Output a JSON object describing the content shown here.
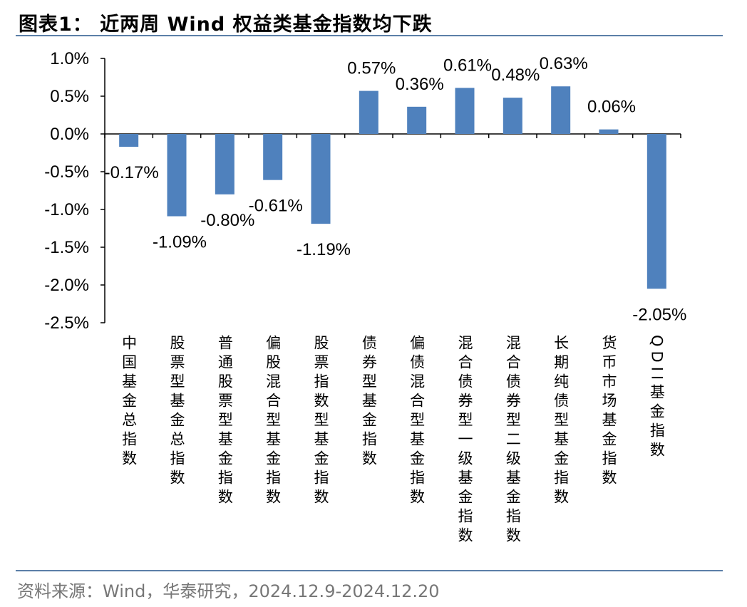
{
  "title": "图表1：  近两周 Wind 权益类基金指数均下跌",
  "source": "资料来源：Wind，华泰研究，2024.12.9-2024.12.20",
  "colors": {
    "bar": "#4f81bd",
    "rule": "#5b7fa8"
  },
  "chart_data": {
    "type": "bar",
    "categories": [
      "中国基金总指数",
      "股票型基金总指数",
      "普通股票型基金指数",
      "偏股混合型基金指数",
      "股票指数型基金指数",
      "债券型基金指数",
      "偏债混合型基金指数",
      "混合债券型一级基金指数",
      "混合债券型二级基金指数",
      "长期纯债型基金指数",
      "货币市场基金指数",
      "QDII基金指数"
    ],
    "values": [
      -0.17,
      -1.09,
      -0.8,
      -0.61,
      -1.19,
      0.57,
      0.36,
      0.61,
      0.48,
      0.63,
      0.06,
      -2.05
    ],
    "data_labels": [
      "-0.17%",
      "-1.09%",
      "-0.80%",
      "-0.61%",
      "-1.19%",
      "0.57%",
      "0.36%",
      "0.61%",
      "0.48%",
      "0.63%",
      "0.06%",
      "-2.05%"
    ],
    "ylim": [
      -2.5,
      1.0
    ],
    "yticks": [
      1.0,
      0.5,
      0.0,
      -0.5,
      -1.0,
      -1.5,
      -2.0,
      -2.5
    ],
    "ytick_labels": [
      "1.0%",
      "0.5%",
      "0.0%",
      "-0.5%",
      "-1.0%",
      "-1.5%",
      "-2.0%",
      "-2.5%"
    ],
    "grid": false,
    "legend": "none"
  }
}
